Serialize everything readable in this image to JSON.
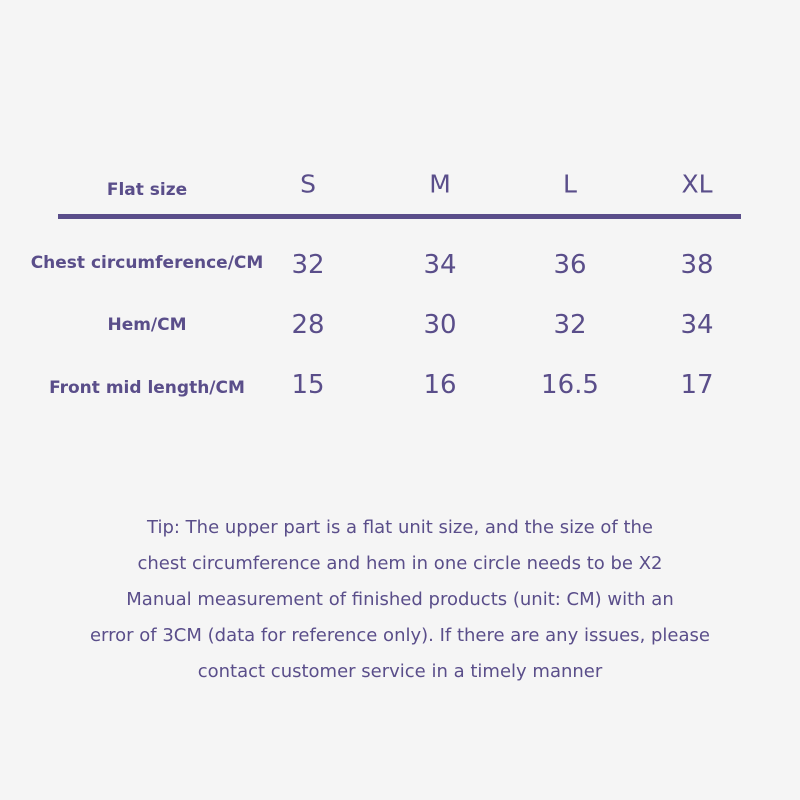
{
  "table": {
    "corner_label": "Flat size",
    "sizes": [
      "S",
      "M",
      "L",
      "XL"
    ],
    "rows": [
      {
        "label": "Chest circumference/CM",
        "values": [
          "32",
          "34",
          "36",
          "38"
        ]
      },
      {
        "label": "Hem/CM",
        "values": [
          "28",
          "30",
          "32",
          "34"
        ]
      },
      {
        "label": "Front mid length/CM",
        "values": [
          "15",
          "16",
          "16.5",
          "17"
        ]
      }
    ]
  },
  "tip_lines": [
    "Tip: The upper part is a flat unit size, and the size of the",
    "chest circumference and hem in one circle needs to be X2",
    "Manual measurement of finished products (unit: CM) with an",
    "error of 3CM (data for reference only). If there are any issues, please",
    "contact customer service in a timely manner"
  ],
  "colors": {
    "text": "#5a4e8a",
    "background": "#f5f5f5"
  }
}
